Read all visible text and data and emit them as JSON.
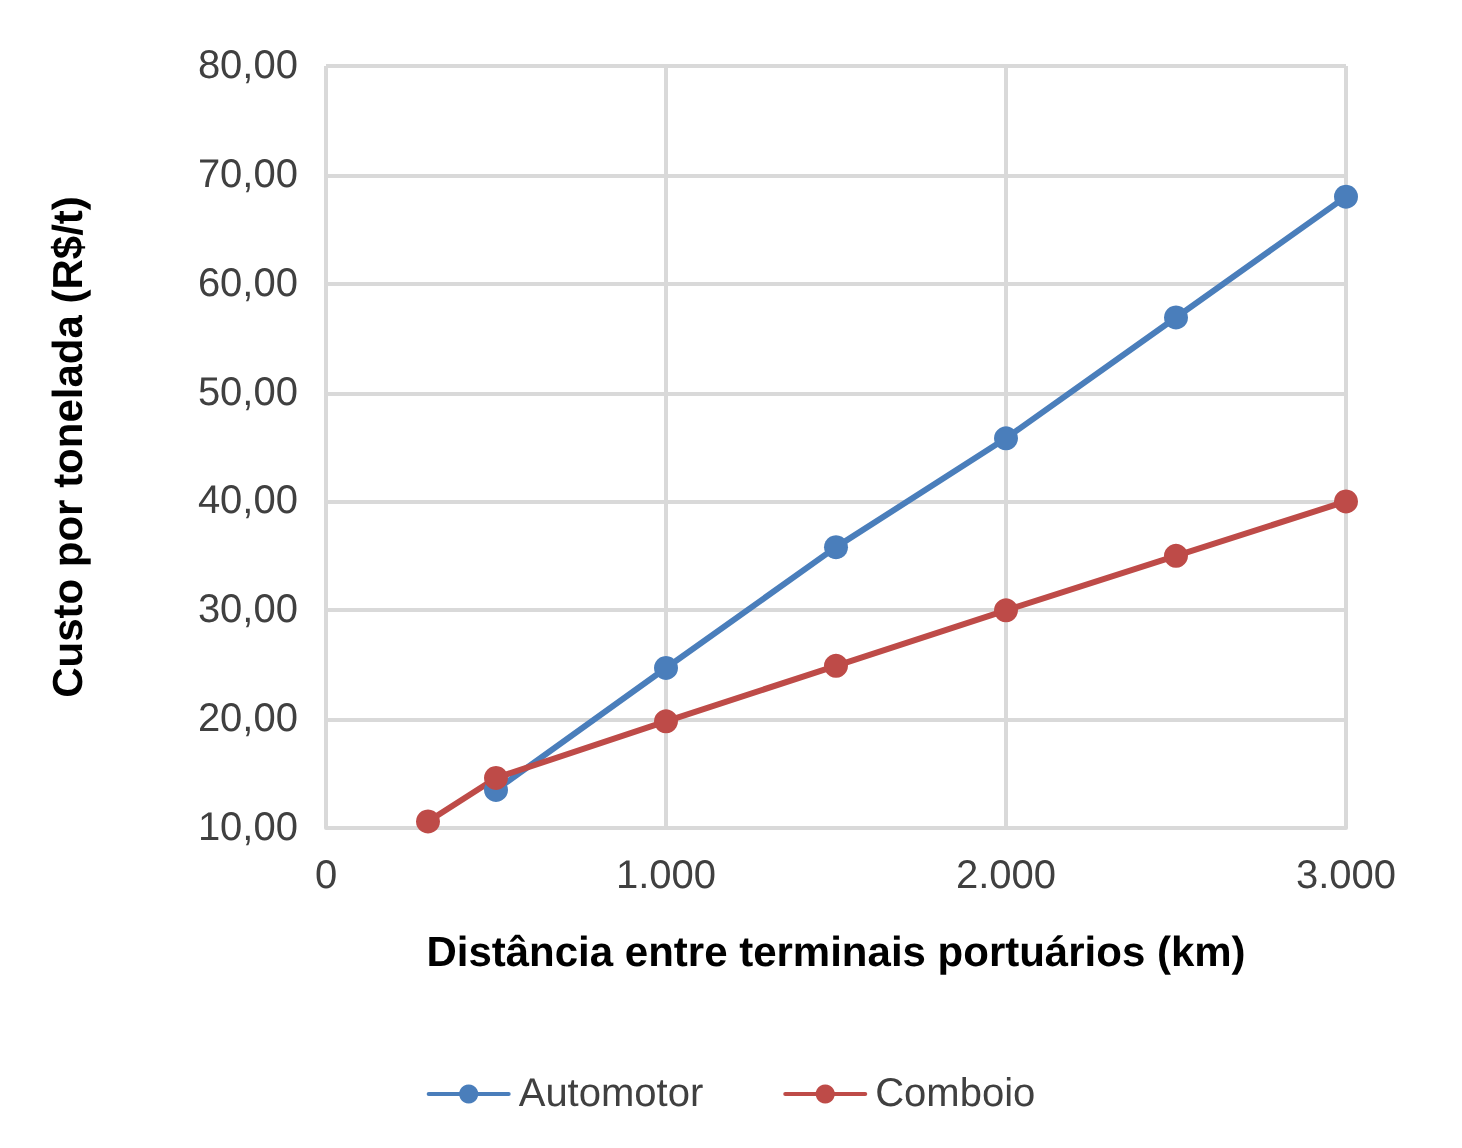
{
  "chart_data": {
    "type": "line",
    "xlabel": "Distância entre terminais portuários (km)",
    "ylabel": "Custo por tonelada (R$/t)",
    "x": [
      300,
      500,
      1000,
      1500,
      2000,
      2500,
      3000
    ],
    "series": [
      {
        "name": "Automotor",
        "color": "#4a7ebb",
        "values": [
          null,
          13.5,
          24.7,
          35.8,
          45.8,
          56.9,
          68.0
        ]
      },
      {
        "name": "Comboio",
        "color": "#be4b48",
        "values": [
          10.6,
          14.6,
          19.8,
          24.9,
          30.0,
          35.0,
          40.0
        ]
      }
    ],
    "xlim": [
      0,
      3000
    ],
    "xticks": [
      0,
      {
        "value": 1000,
        "label": "1.000"
      },
      {
        "value": 2000,
        "label": "2.000"
      },
      {
        "value": 3000,
        "label": "3.000"
      }
    ],
    "ylim": [
      10,
      80
    ],
    "yticks": [
      {
        "value": 10,
        "label": "10,00"
      },
      {
        "value": 20,
        "label": "20,00"
      },
      {
        "value": 30,
        "label": "30,00"
      },
      {
        "value": 40,
        "label": "40,00"
      },
      {
        "value": 50,
        "label": "50,00"
      },
      {
        "value": 60,
        "label": "60,00"
      },
      {
        "value": 70,
        "label": "70,00"
      },
      {
        "value": 80,
        "label": "80,00"
      }
    ],
    "grid": true,
    "legend": "bottom",
    "marker": "circle",
    "line_style": "solid"
  }
}
